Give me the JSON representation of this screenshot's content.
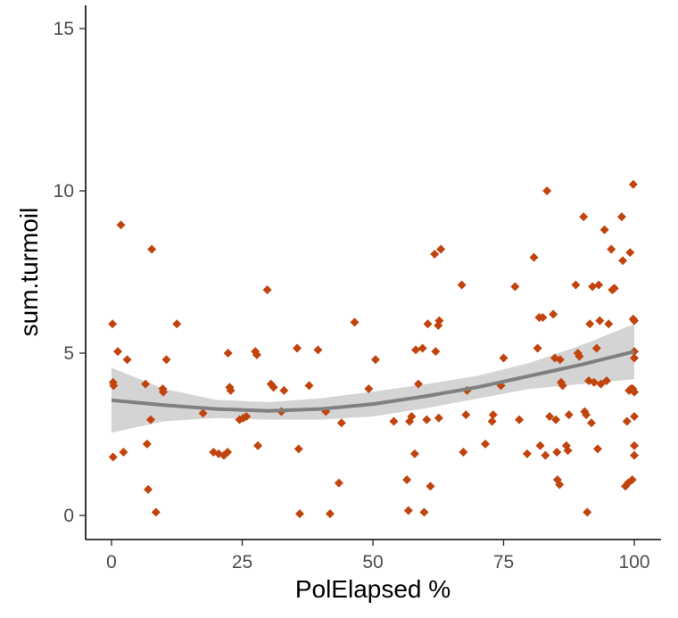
{
  "chart_data": {
    "type": "scatter",
    "xlabel": "PolElapsed %",
    "ylabel": "sum.turmoil",
    "xlim": [
      0,
      100
    ],
    "ylim": [
      0,
      15
    ],
    "x_ticks": [
      "0",
      "25",
      "50",
      "75",
      "100"
    ],
    "y_ticks": [
      "0",
      "5",
      "10",
      "15"
    ],
    "x_tick_values": [
      0,
      25,
      50,
      75,
      100
    ],
    "y_tick_values": [
      0,
      5,
      10,
      15
    ],
    "grid": false,
    "point_color": "#c1440e",
    "smooth_color": "#808080",
    "band_color": "#cccccc",
    "smooth": {
      "x": [
        0,
        10,
        20,
        30,
        40,
        50,
        60,
        70,
        80,
        90,
        100
      ],
      "y": [
        3.55,
        3.4,
        3.28,
        3.22,
        3.28,
        3.43,
        3.67,
        3.95,
        4.3,
        4.65,
        5.05
      ],
      "lower": [
        2.55,
        2.9,
        3.0,
        2.95,
        2.95,
        3.05,
        3.3,
        3.6,
        3.9,
        4.05,
        4.2
      ],
      "upper": [
        4.55,
        3.9,
        3.56,
        3.49,
        3.61,
        3.81,
        4.04,
        4.3,
        4.7,
        5.25,
        5.9
      ]
    },
    "points": [
      {
        "x": 0.2,
        "y": 5.9
      },
      {
        "x": 0.3,
        "y": 4.1
      },
      {
        "x": 0.4,
        "y": 4.0
      },
      {
        "x": 0.3,
        "y": 1.8
      },
      {
        "x": 1.2,
        "y": 5.05
      },
      {
        "x": 1.8,
        "y": 8.95
      },
      {
        "x": 2.3,
        "y": 1.95
      },
      {
        "x": 3.0,
        "y": 4.8
      },
      {
        "x": 6.5,
        "y": 4.05
      },
      {
        "x": 6.8,
        "y": 2.2
      },
      {
        "x": 7.0,
        "y": 0.8
      },
      {
        "x": 7.5,
        "y": 2.95
      },
      {
        "x": 7.7,
        "y": 8.2
      },
      {
        "x": 8.5,
        "y": 0.1
      },
      {
        "x": 9.8,
        "y": 3.9
      },
      {
        "x": 9.9,
        "y": 3.8
      },
      {
        "x": 10.5,
        "y": 4.8
      },
      {
        "x": 12.5,
        "y": 5.9
      },
      {
        "x": 17.5,
        "y": 3.15
      },
      {
        "x": 19.5,
        "y": 1.95
      },
      {
        "x": 20.5,
        "y": 1.9
      },
      {
        "x": 21.5,
        "y": 1.85
      },
      {
        "x": 22.2,
        "y": 1.95
      },
      {
        "x": 22.3,
        "y": 5.0
      },
      {
        "x": 22.6,
        "y": 3.95
      },
      {
        "x": 22.8,
        "y": 3.85
      },
      {
        "x": 24.5,
        "y": 2.95
      },
      {
        "x": 25.2,
        "y": 3.0
      },
      {
        "x": 25.8,
        "y": 3.05
      },
      {
        "x": 27.5,
        "y": 5.05
      },
      {
        "x": 27.8,
        "y": 4.95
      },
      {
        "x": 28.0,
        "y": 2.15
      },
      {
        "x": 29.8,
        "y": 6.95
      },
      {
        "x": 30.5,
        "y": 4.05
      },
      {
        "x": 31.0,
        "y": 3.95
      },
      {
        "x": 32.5,
        "y": 3.2
      },
      {
        "x": 33.0,
        "y": 3.85
      },
      {
        "x": 35.5,
        "y": 5.15
      },
      {
        "x": 35.8,
        "y": 2.05
      },
      {
        "x": 36.0,
        "y": 0.05
      },
      {
        "x": 37.8,
        "y": 4.0
      },
      {
        "x": 39.5,
        "y": 5.1
      },
      {
        "x": 41.0,
        "y": 3.2
      },
      {
        "x": 41.8,
        "y": 0.05
      },
      {
        "x": 43.5,
        "y": 1.0
      },
      {
        "x": 44.0,
        "y": 2.85
      },
      {
        "x": 46.5,
        "y": 5.95
      },
      {
        "x": 49.2,
        "y": 3.9
      },
      {
        "x": 50.5,
        "y": 4.8
      },
      {
        "x": 54.0,
        "y": 2.9
      },
      {
        "x": 56.5,
        "y": 1.1
      },
      {
        "x": 56.8,
        "y": 0.15
      },
      {
        "x": 57.0,
        "y": 2.9
      },
      {
        "x": 57.4,
        "y": 3.05
      },
      {
        "x": 58.0,
        "y": 1.9
      },
      {
        "x": 58.2,
        "y": 5.1
      },
      {
        "x": 58.7,
        "y": 4.05
      },
      {
        "x": 59.5,
        "y": 5.15
      },
      {
        "x": 59.8,
        "y": 0.1
      },
      {
        "x": 60.3,
        "y": 2.95
      },
      {
        "x": 60.5,
        "y": 5.9
      },
      {
        "x": 61.0,
        "y": 0.9
      },
      {
        "x": 61.8,
        "y": 8.05
      },
      {
        "x": 62.0,
        "y": 5.05
      },
      {
        "x": 62.5,
        "y": 5.85
      },
      {
        "x": 62.7,
        "y": 6.0
      },
      {
        "x": 63.0,
        "y": 8.2
      },
      {
        "x": 62.6,
        "y": 3.0
      },
      {
        "x": 67.0,
        "y": 7.1
      },
      {
        "x": 67.3,
        "y": 1.95
      },
      {
        "x": 67.8,
        "y": 3.1
      },
      {
        "x": 68.0,
        "y": 3.85
      },
      {
        "x": 71.5,
        "y": 2.2
      },
      {
        "x": 72.8,
        "y": 2.9
      },
      {
        "x": 73.0,
        "y": 3.1
      },
      {
        "x": 74.5,
        "y": 4.0
      },
      {
        "x": 75.0,
        "y": 4.85
      },
      {
        "x": 77.2,
        "y": 7.05
      },
      {
        "x": 78.0,
        "y": 2.95
      },
      {
        "x": 79.5,
        "y": 1.9
      },
      {
        "x": 80.8,
        "y": 7.95
      },
      {
        "x": 81.5,
        "y": 5.15
      },
      {
        "x": 81.8,
        "y": 6.1
      },
      {
        "x": 82.0,
        "y": 2.15
      },
      {
        "x": 82.5,
        "y": 6.1
      },
      {
        "x": 83.0,
        "y": 1.85
      },
      {
        "x": 83.3,
        "y": 10.0
      },
      {
        "x": 83.8,
        "y": 3.05
      },
      {
        "x": 84.5,
        "y": 6.2
      },
      {
        "x": 84.8,
        "y": 4.85
      },
      {
        "x": 85.0,
        "y": 2.95
      },
      {
        "x": 85.2,
        "y": 1.95
      },
      {
        "x": 85.3,
        "y": 1.1
      },
      {
        "x": 85.7,
        "y": 0.95
      },
      {
        "x": 85.8,
        "y": 4.8
      },
      {
        "x": 86.0,
        "y": 4.1
      },
      {
        "x": 86.3,
        "y": 4.0
      },
      {
        "x": 87.0,
        "y": 2.15
      },
      {
        "x": 87.3,
        "y": 2.0
      },
      {
        "x": 87.5,
        "y": 3.1
      },
      {
        "x": 88.8,
        "y": 7.1
      },
      {
        "x": 89.2,
        "y": 5.0
      },
      {
        "x": 89.5,
        "y": 4.9
      },
      {
        "x": 90.3,
        "y": 9.2
      },
      {
        "x": 90.5,
        "y": 3.2
      },
      {
        "x": 90.8,
        "y": 3.1
      },
      {
        "x": 91.0,
        "y": 0.1
      },
      {
        "x": 91.3,
        "y": 4.15
      },
      {
        "x": 91.5,
        "y": 5.9
      },
      {
        "x": 91.8,
        "y": 2.85
      },
      {
        "x": 92.0,
        "y": 7.05
      },
      {
        "x": 92.3,
        "y": 4.1
      },
      {
        "x": 92.8,
        "y": 5.15
      },
      {
        "x": 93.0,
        "y": 2.05
      },
      {
        "x": 93.2,
        "y": 7.1
      },
      {
        "x": 93.4,
        "y": 6.0
      },
      {
        "x": 93.6,
        "y": 4.05
      },
      {
        "x": 94.3,
        "y": 8.8
      },
      {
        "x": 94.7,
        "y": 4.15
      },
      {
        "x": 95.1,
        "y": 5.9
      },
      {
        "x": 95.6,
        "y": 8.2
      },
      {
        "x": 95.8,
        "y": 6.95
      },
      {
        "x": 96.2,
        "y": 7.0
      },
      {
        "x": 97.6,
        "y": 9.2
      },
      {
        "x": 97.8,
        "y": 7.85
      },
      {
        "x": 98.3,
        "y": 0.9
      },
      {
        "x": 98.6,
        "y": 2.9
      },
      {
        "x": 98.8,
        "y": 1.0
      },
      {
        "x": 99.0,
        "y": 3.85
      },
      {
        "x": 99.2,
        "y": 8.1
      },
      {
        "x": 99.4,
        "y": 3.9
      },
      {
        "x": 99.6,
        "y": 1.1
      },
      {
        "x": 99.7,
        "y": 3.9
      },
      {
        "x": 99.8,
        "y": 10.2
      },
      {
        "x": 100.0,
        "y": 1.85
      },
      {
        "x": 100.0,
        "y": 2.15
      },
      {
        "x": 100.0,
        "y": 3.05
      },
      {
        "x": 100.0,
        "y": 4.85
      },
      {
        "x": 100.0,
        "y": 5.05
      },
      {
        "x": 100.0,
        "y": 6.0
      },
      {
        "x": 99.8,
        "y": 6.05
      },
      {
        "x": 100.0,
        "y": 3.8
      }
    ]
  }
}
